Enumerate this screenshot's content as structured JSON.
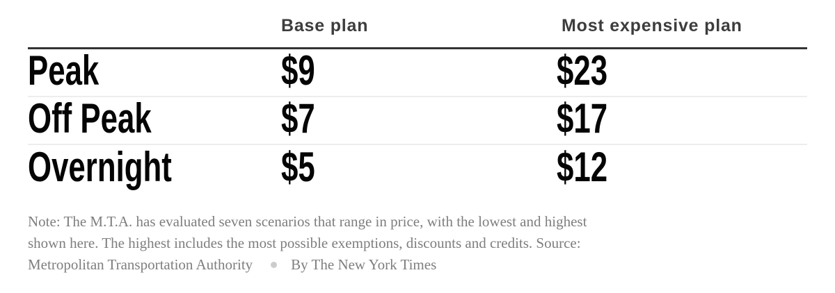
{
  "table": {
    "headers": {
      "label_col": "",
      "base_col": "Base plan",
      "expensive_col": "Most expensive plan"
    },
    "rows": [
      {
        "label": "Peak",
        "base": "$9",
        "expensive": "$23"
      },
      {
        "label": "Off Peak",
        "base": "$7",
        "expensive": "$17"
      },
      {
        "label": "Overnight",
        "base": "$5",
        "expensive": "$12"
      }
    ]
  },
  "note": {
    "line1": "Note: The M.T.A. has evaluated seven scenarios that range in price, with the lowest and highest",
    "line2": "shown here. The highest includes the most possible exemptions, discounts and credits. Source:",
    "source": "Metropolitan Transportation Authority",
    "byline": "By The New York Times"
  },
  "colors": {
    "header_rule": "#333333",
    "row_divider": "#ededed",
    "row_text": "#050505",
    "header_text": "#3d3d3d",
    "note_text": "#7e7e7e",
    "dot_separator": "#cccccc",
    "background": "#ffffff"
  },
  "chart_data": {
    "type": "table",
    "columns": [
      "",
      "Base plan",
      "Most expensive plan"
    ],
    "rows": [
      [
        "Peak",
        "$9",
        "$23"
      ],
      [
        "Off Peak",
        "$7",
        "$17"
      ],
      [
        "Overnight",
        "$5",
        "$12"
      ]
    ],
    "values_numeric": {
      "base_plan": {
        "Peak": 9,
        "Off Peak": 7,
        "Overnight": 5
      },
      "most_expensive_plan": {
        "Peak": 23,
        "Off Peak": 17,
        "Overnight": 12
      }
    },
    "note": "Note: The M.T.A. has evaluated seven scenarios that range in price, with the lowest and highest shown here. The highest includes the most possible exemptions, discounts and credits.",
    "source": "Metropolitan Transportation Authority",
    "byline": "By The New York Times"
  }
}
